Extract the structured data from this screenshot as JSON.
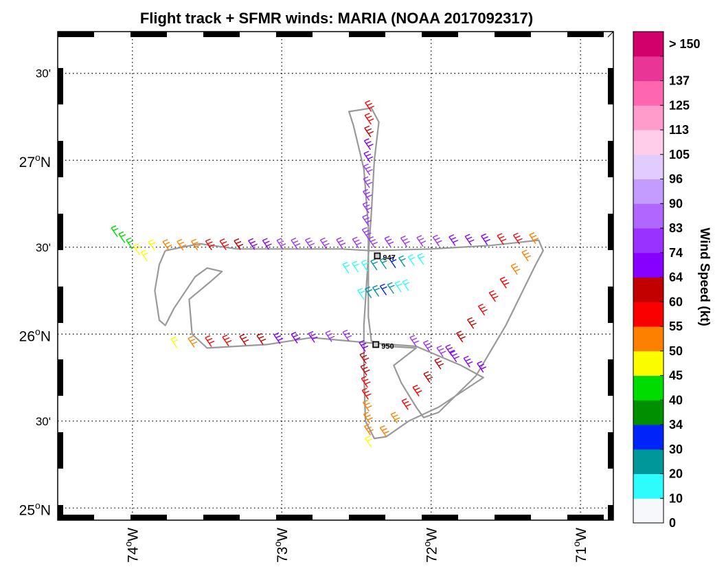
{
  "chart_data": {
    "type": "scatter",
    "title": "Flight track + SFMR winds: MARIA (NOAA 2017092317)",
    "x_ticks": [
      {
        "lon": -74,
        "deg": "74",
        "sup": "o",
        "hem": "W"
      },
      {
        "lon": -73,
        "deg": "73",
        "sup": "o",
        "hem": "W"
      },
      {
        "lon": -72,
        "deg": "72",
        "sup": "o",
        "hem": "W"
      },
      {
        "lon": -71,
        "deg": "71",
        "sup": "o",
        "hem": "W"
      }
    ],
    "y_ticks": [
      {
        "lat": 25.0,
        "deg": "25",
        "sup": "o",
        "hem": "N",
        "minor": false
      },
      {
        "lat": 25.5,
        "text": "30'",
        "minor": true
      },
      {
        "lat": 26.0,
        "deg": "26",
        "sup": "o",
        "hem": "N",
        "minor": false
      },
      {
        "lat": 26.5,
        "text": "30'",
        "minor": true
      },
      {
        "lat": 27.0,
        "deg": "27",
        "sup": "o",
        "hem": "N",
        "minor": false
      },
      {
        "lat": 27.5,
        "text": "30'",
        "minor": true
      }
    ],
    "xlim": [
      -74.5,
      -70.78
    ],
    "ylim": [
      24.93,
      27.74
    ],
    "grid": true,
    "colorbar": {
      "label": "Wind Speed (kt)",
      "ticks": [
        "0",
        "10",
        "20",
        "30",
        "34",
        "40",
        "45",
        "50",
        "55",
        "60",
        "64",
        "74",
        "83",
        "90",
        "96",
        "105",
        "113",
        "125",
        "137",
        "> 150"
      ],
      "colors": [
        "#f6f8fc",
        "#2efcfc",
        "#00979b",
        "#0023fa",
        "#008f00",
        "#00db00",
        "#fbfc00",
        "#fe8000",
        "#fb0000",
        "#c20000",
        "#8700ff",
        "#9a32ff",
        "#b066ff",
        "#c49bff",
        "#e2ccff",
        "#ffccea",
        "#ff9ccc",
        "#ff66b2",
        "#e83596",
        "#d1006b"
      ]
    },
    "annotations": [
      {
        "text": "947",
        "lon": -72.36,
        "lat": 26.45
      },
      {
        "text": "950",
        "lon": -72.37,
        "lat": 25.94
      }
    ],
    "flight_track": [
      [
        -73.78,
        26.48
      ],
      [
        -73.55,
        26.52
      ],
      [
        -73.3,
        26.49
      ],
      [
        -73.0,
        26.49
      ],
      [
        -72.6,
        26.49
      ],
      [
        -72.4,
        26.48
      ],
      [
        -72.0,
        26.49
      ],
      [
        -71.6,
        26.51
      ],
      [
        -71.28,
        26.54
      ],
      [
        -71.25,
        26.48
      ],
      [
        -71.3,
        26.4
      ],
      [
        -71.5,
        26.05
      ],
      [
        -71.7,
        25.76
      ],
      [
        -71.95,
        25.55
      ],
      [
        -72.05,
        25.52
      ],
      [
        -72.1,
        25.58
      ],
      [
        -72.2,
        25.72
      ],
      [
        -72.25,
        25.82
      ],
      [
        -72.1,
        25.92
      ],
      [
        -72.28,
        25.93
      ],
      [
        -72.4,
        25.96
      ],
      [
        -72.42,
        26.1
      ],
      [
        -72.42,
        26.35
      ],
      [
        -72.42,
        26.62
      ],
      [
        -72.45,
        26.95
      ],
      [
        -72.52,
        27.2
      ],
      [
        -72.55,
        27.28
      ],
      [
        -72.4,
        27.3
      ],
      [
        -72.35,
        27.22
      ],
      [
        -72.38,
        27.0
      ],
      [
        -72.4,
        26.7
      ],
      [
        -72.42,
        26.45
      ],
      [
        -72.45,
        26.05
      ],
      [
        -72.45,
        25.8
      ],
      [
        -72.44,
        25.5
      ],
      [
        -72.38,
        25.4
      ],
      [
        -72.3,
        25.41
      ],
      [
        -72.15,
        25.5
      ],
      [
        -71.95,
        25.58
      ],
      [
        -71.65,
        25.75
      ],
      [
        -71.8,
        25.82
      ],
      [
        -72.1,
        25.93
      ],
      [
        -72.42,
        25.95
      ],
      [
        -72.8,
        25.98
      ],
      [
        -73.1,
        25.94
      ],
      [
        -73.5,
        25.92
      ],
      [
        -73.6,
        26.0
      ],
      [
        -73.62,
        26.2
      ],
      [
        -73.48,
        26.3
      ],
      [
        -73.4,
        26.36
      ],
      [
        -73.5,
        26.38
      ],
      [
        -73.58,
        26.33
      ],
      [
        -73.72,
        26.15
      ],
      [
        -73.78,
        26.05
      ],
      [
        -73.82,
        26.08
      ],
      [
        -73.85,
        26.25
      ],
      [
        -73.82,
        26.4
      ],
      [
        -73.78,
        26.48
      ]
    ],
    "wind_legs": [
      {
        "from": [
          -73.85,
          26.48
        ],
        "to": [
          -72.8,
          26.49
        ],
        "speeds": [
          45,
          50,
          50,
          52,
          55,
          58,
          62,
          66,
          70,
          74,
          78,
          80
        ]
      },
      {
        "from": [
          -72.7,
          26.49
        ],
        "to": [
          -71.3,
          26.52
        ],
        "speeds": [
          80,
          80,
          82,
          80,
          78,
          76,
          75,
          74,
          72,
          70,
          64,
          58,
          55,
          52
        ]
      },
      {
        "from": [
          -73.7,
          25.92
        ],
        "to": [
          -72.55,
          25.96
        ],
        "speeds": [
          48,
          50,
          55,
          58,
          60,
          62,
          64,
          70,
          72,
          75,
          80
        ]
      },
      {
        "from": [
          -72.1,
          25.93
        ],
        "to": [
          -71.65,
          25.78
        ],
        "speeds": [
          78,
          76,
          74,
          70,
          66,
          64
        ]
      },
      {
        "from": [
          -72.4,
          27.28
        ],
        "to": [
          -72.42,
          26.55
        ],
        "speeds": [
          55,
          58,
          62,
          64,
          70,
          74,
          78,
          80,
          82,
          80,
          78
        ]
      },
      {
        "from": [
          -72.44,
          25.9
        ],
        "to": [
          -72.4,
          25.35
        ],
        "speeds": [
          64,
          62,
          60,
          58,
          56,
          54,
          52,
          50,
          48
        ]
      },
      {
        "from": [
          -72.3,
          25.41
        ],
        "to": [
          -71.35,
          26.42
        ],
        "speeds": [
          50,
          52,
          55,
          58,
          60,
          62,
          64,
          62,
          60,
          58,
          56,
          55,
          52,
          50
        ]
      },
      {
        "from": [
          -72.55,
          26.35
        ],
        "to": [
          -72.05,
          26.4
        ],
        "speeds": [
          12,
          15,
          18,
          20,
          25,
          30,
          22,
          15,
          10
        ]
      },
      {
        "from": [
          -72.45,
          26.2
        ],
        "to": [
          -72.15,
          26.25
        ],
        "speeds": [
          14,
          20,
          25,
          30,
          28,
          18,
          12
        ]
      },
      {
        "from": [
          -74.1,
          26.56
        ],
        "to": [
          -73.9,
          26.42
        ],
        "speeds": [
          40,
          42,
          44,
          45,
          46
        ]
      }
    ]
  }
}
